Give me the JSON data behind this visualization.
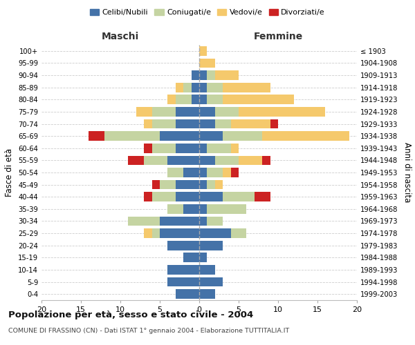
{
  "age_groups": [
    "0-4",
    "5-9",
    "10-14",
    "15-19",
    "20-24",
    "25-29",
    "30-34",
    "35-39",
    "40-44",
    "45-49",
    "50-54",
    "55-59",
    "60-64",
    "65-69",
    "70-74",
    "75-79",
    "80-84",
    "85-89",
    "90-94",
    "95-99",
    "100+"
  ],
  "birth_years": [
    "1999-2003",
    "1994-1998",
    "1989-1993",
    "1984-1988",
    "1979-1983",
    "1974-1978",
    "1969-1973",
    "1964-1968",
    "1959-1963",
    "1954-1958",
    "1949-1953",
    "1944-1948",
    "1939-1943",
    "1934-1938",
    "1929-1933",
    "1924-1928",
    "1919-1923",
    "1914-1918",
    "1909-1913",
    "1904-1908",
    "≤ 1903"
  ],
  "maschi": {
    "celibi": [
      3,
      4,
      4,
      2,
      4,
      5,
      5,
      2,
      3,
      3,
      2,
      4,
      3,
      5,
      3,
      3,
      1,
      1,
      1,
      0,
      0
    ],
    "coniugati": [
      0,
      0,
      0,
      0,
      0,
      1,
      4,
      2,
      3,
      2,
      2,
      3,
      3,
      7,
      3,
      3,
      2,
      1,
      0,
      0,
      0
    ],
    "vedovi": [
      0,
      0,
      0,
      0,
      0,
      1,
      0,
      0,
      0,
      0,
      0,
      0,
      0,
      0,
      1,
      2,
      1,
      1,
      0,
      0,
      0
    ],
    "divorziati": [
      0,
      0,
      0,
      0,
      0,
      0,
      0,
      0,
      1,
      1,
      0,
      2,
      1,
      2,
      0,
      0,
      0,
      0,
      0,
      0,
      0
    ]
  },
  "femmine": {
    "nubili": [
      2,
      3,
      2,
      1,
      3,
      4,
      1,
      1,
      3,
      1,
      1,
      2,
      1,
      3,
      2,
      2,
      1,
      1,
      1,
      0,
      0
    ],
    "coniugate": [
      0,
      0,
      0,
      0,
      0,
      2,
      2,
      5,
      4,
      1,
      2,
      3,
      3,
      5,
      2,
      3,
      2,
      2,
      1,
      0,
      0
    ],
    "vedove": [
      0,
      0,
      0,
      0,
      0,
      0,
      0,
      0,
      0,
      1,
      1,
      3,
      1,
      11,
      5,
      11,
      9,
      6,
      3,
      2,
      1
    ],
    "divorziate": [
      0,
      0,
      0,
      0,
      0,
      0,
      0,
      0,
      2,
      0,
      1,
      1,
      0,
      0,
      1,
      0,
      0,
      0,
      0,
      0,
      0
    ]
  },
  "colors": {
    "celibi_nubili": "#4472a8",
    "coniugati": "#c5d4a2",
    "vedovi": "#f5c96c",
    "divorziati": "#cc2222"
  },
  "xlim": [
    -20,
    20
  ],
  "title": "Popolazione per età, sesso e stato civile - 2004",
  "subtitle": "COMUNE DI FRASSINO (CN) - Dati ISTAT 1° gennaio 2004 - Elaborazione TUTTITALIA.IT",
  "ylabel_left": "Fasce di età",
  "ylabel_right": "Anni di nascita",
  "label_maschi": "Maschi",
  "label_femmine": "Femmine",
  "legend_labels": [
    "Celibi/Nubili",
    "Coniugati/e",
    "Vedovi/e",
    "Divorziati/e"
  ],
  "background_color": "#ffffff",
  "grid_color": "#cccccc"
}
